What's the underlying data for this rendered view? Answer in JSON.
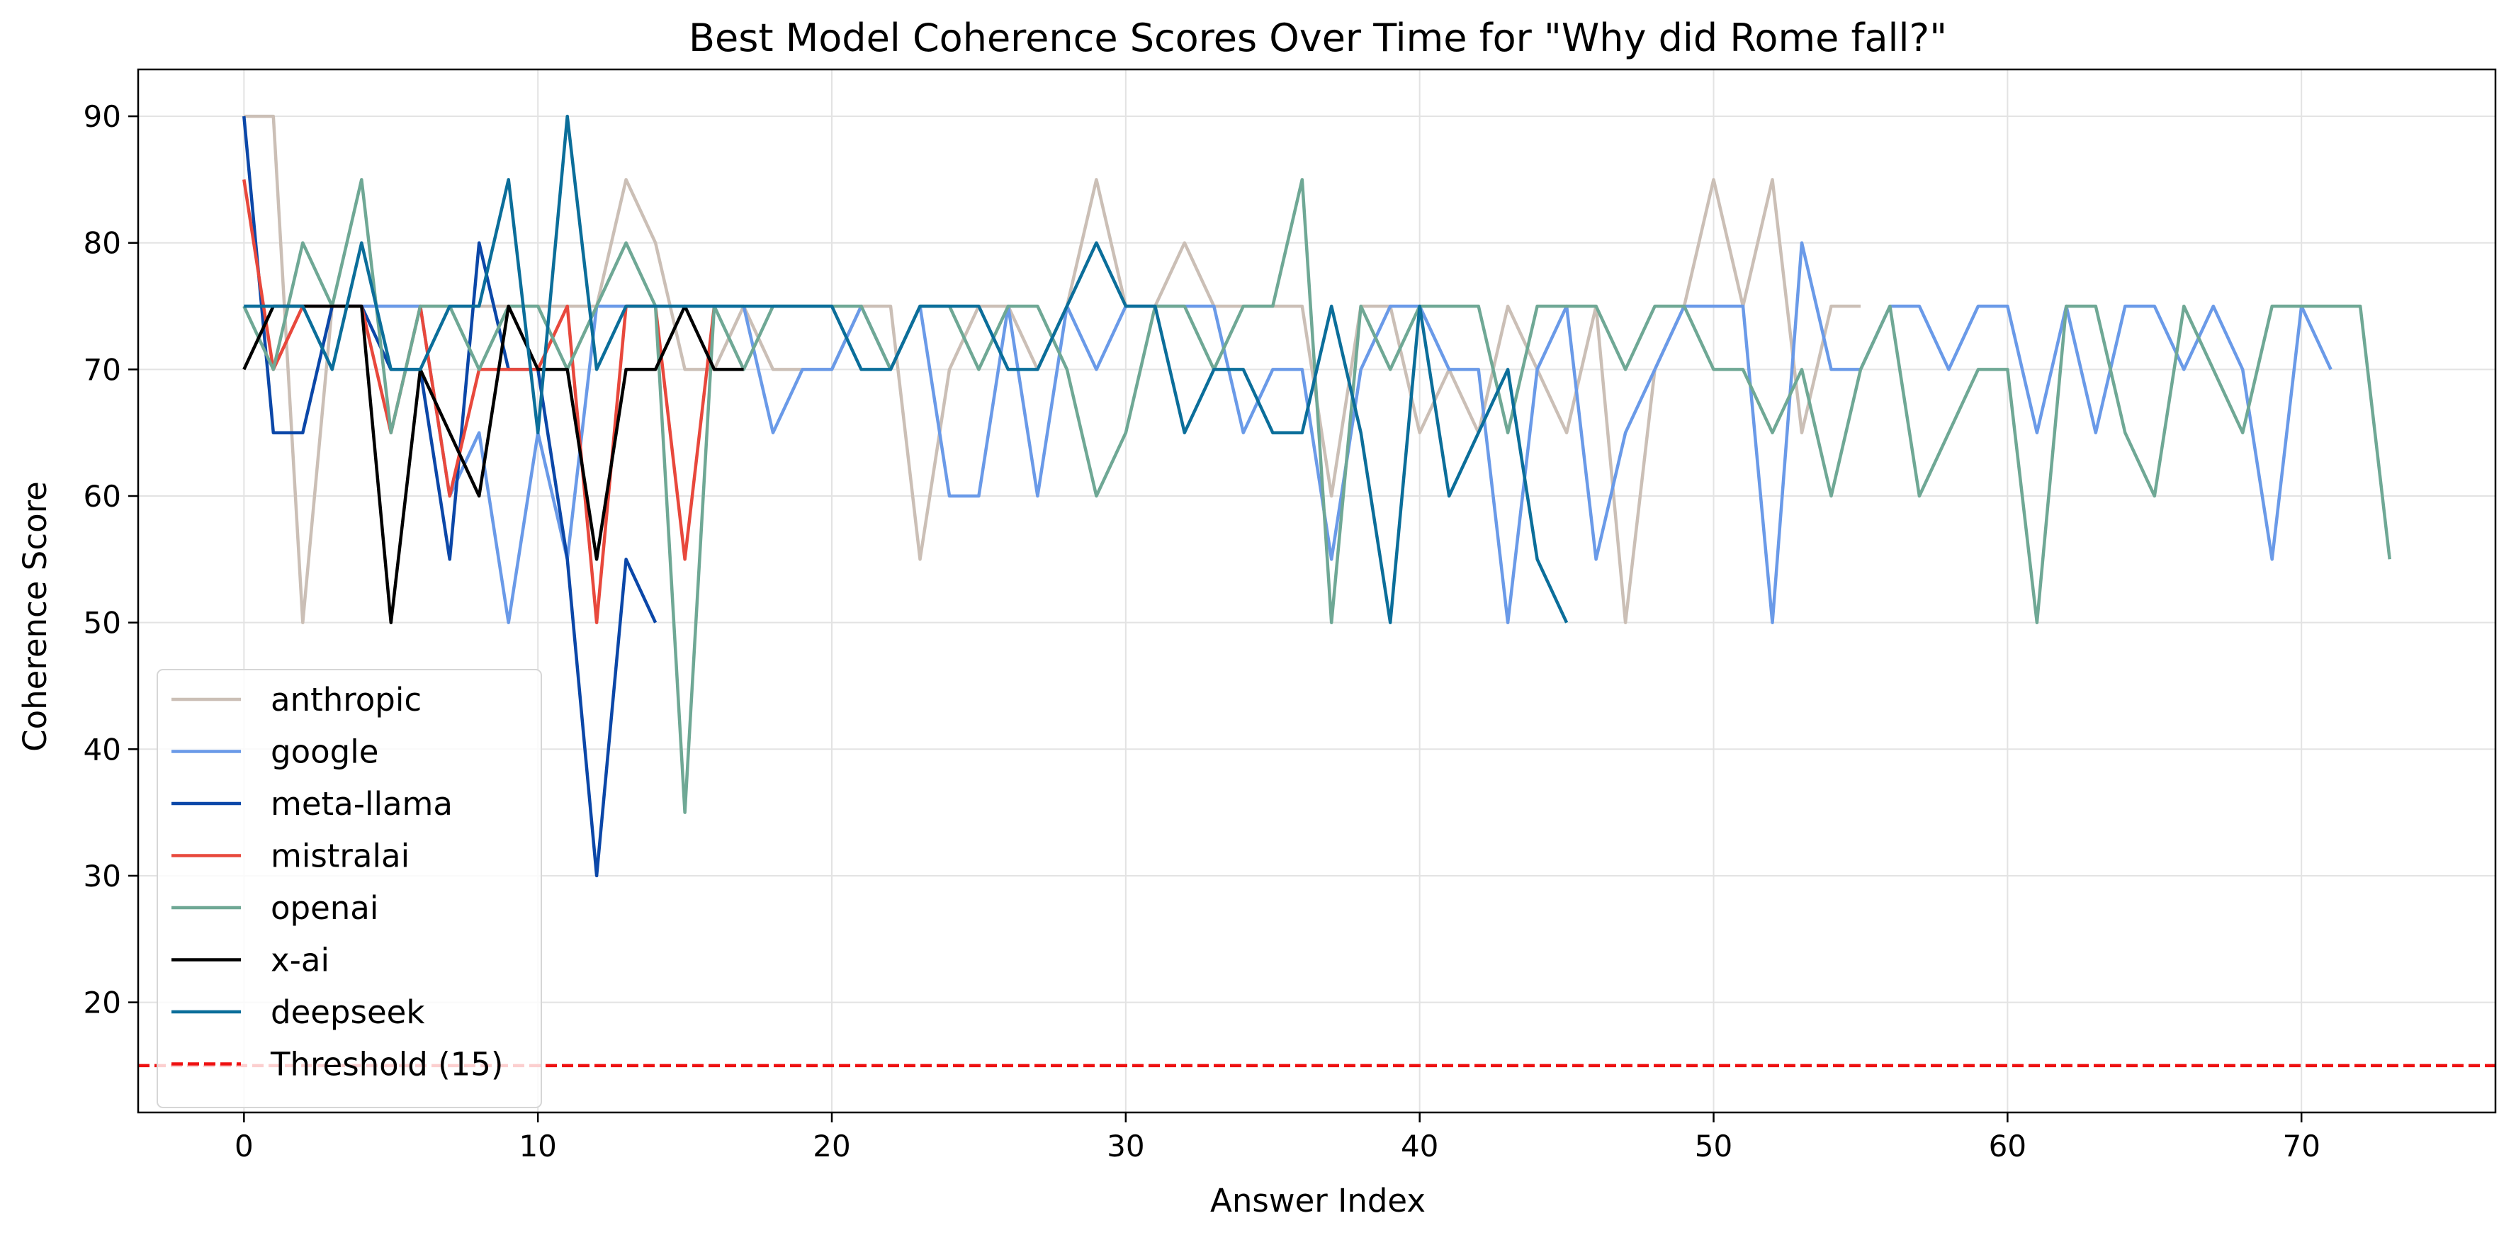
{
  "chart_data": {
    "type": "line",
    "title": "Best Model Coherence Scores Over Time for \"Why did Rome fall?\"",
    "xlabel": "Answer Index",
    "ylabel": "Coherence Score",
    "xlim": [
      -3.6,
      76.6
    ],
    "ylim": [
      11.3,
      93.7
    ],
    "xticks": [
      0,
      10,
      20,
      30,
      40,
      50,
      60,
      70
    ],
    "yticks": [
      20,
      30,
      40,
      50,
      60,
      70,
      80,
      90
    ],
    "grid": true,
    "legend_position": "lower-left",
    "series": [
      {
        "name": "anthropic",
        "color": "#cbbfb6",
        "y": [
          90,
          90,
          50,
          75,
          75,
          75,
          75,
          75,
          75,
          75,
          75,
          75,
          75,
          85,
          80,
          70,
          70,
          75,
          70,
          70,
          70,
          75,
          75,
          55,
          70,
          75,
          75,
          70,
          75,
          85,
          75,
          75,
          80,
          75,
          75,
          75,
          75,
          60,
          75,
          75,
          65,
          70,
          65,
          75,
          70,
          65,
          75,
          50,
          70,
          75,
          85,
          75,
          85,
          65,
          75,
          75
        ]
      },
      {
        "name": "google",
        "color": "#6a9ae8",
        "y": [
          75,
          75,
          75,
          75,
          75,
          75,
          75,
          60,
          65,
          50,
          65,
          55,
          75,
          75,
          75,
          75,
          75,
          75,
          65,
          70,
          70,
          75,
          70,
          75,
          60,
          60,
          75,
          60,
          75,
          70,
          75,
          75,
          75,
          75,
          65,
          70,
          70,
          55,
          70,
          75,
          75,
          70,
          70,
          50,
          70,
          75,
          55,
          65,
          70,
          75,
          75,
          75,
          50,
          80,
          70,
          70,
          75,
          75,
          70,
          75,
          75,
          65,
          75,
          65,
          75,
          75,
          70,
          75,
          70,
          55,
          75,
          70
        ]
      },
      {
        "name": "meta-llama",
        "color": "#0b47a8",
        "y": [
          90,
          65,
          65,
          75,
          75,
          70,
          70,
          55,
          80,
          70,
          70,
          55,
          30,
          55,
          50
        ]
      },
      {
        "name": "mistralai",
        "color": "#e8483c",
        "y": [
          85,
          70,
          75,
          75,
          75,
          65,
          75,
          60,
          70,
          70,
          70,
          75,
          50,
          75,
          75,
          55,
          75
        ]
      },
      {
        "name": "openai",
        "color": "#6fa895",
        "y": [
          75,
          70,
          80,
          75,
          85,
          65,
          75,
          75,
          70,
          75,
          75,
          70,
          75,
          80,
          75,
          35,
          75,
          70,
          75,
          75,
          75,
          75,
          70,
          75,
          75,
          70,
          75,
          75,
          70,
          60,
          65,
          75,
          75,
          70,
          75,
          75,
          85,
          50,
          75,
          70,
          75,
          75,
          75,
          65,
          75,
          75,
          75,
          70,
          75,
          75,
          70,
          70,
          65,
          70,
          60,
          70,
          75,
          60,
          65,
          70,
          70,
          50,
          75,
          75,
          65,
          60,
          75,
          70,
          65,
          75,
          75,
          75,
          75,
          55
        ]
      },
      {
        "name": "x-ai",
        "color": "#000000",
        "y": [
          70,
          75,
          75,
          75,
          75,
          50,
          70,
          65,
          60,
          75,
          70,
          70,
          55,
          70,
          70,
          75,
          70,
          70
        ]
      },
      {
        "name": "deepseek",
        "color": "#0b6e9a",
        "y": [
          75,
          75,
          75,
          70,
          80,
          70,
          70,
          75,
          75,
          85,
          65,
          90,
          70,
          75,
          75,
          75,
          75,
          75,
          75,
          75,
          75,
          70,
          70,
          75,
          75,
          75,
          70,
          70,
          75,
          80,
          75,
          75,
          65,
          70,
          70,
          65,
          65,
          75,
          65,
          50,
          75,
          60,
          65,
          70,
          55,
          50
        ]
      }
    ],
    "threshold": {
      "label": "Threshold (15)",
      "value": 15,
      "color": "#ee1111"
    }
  }
}
